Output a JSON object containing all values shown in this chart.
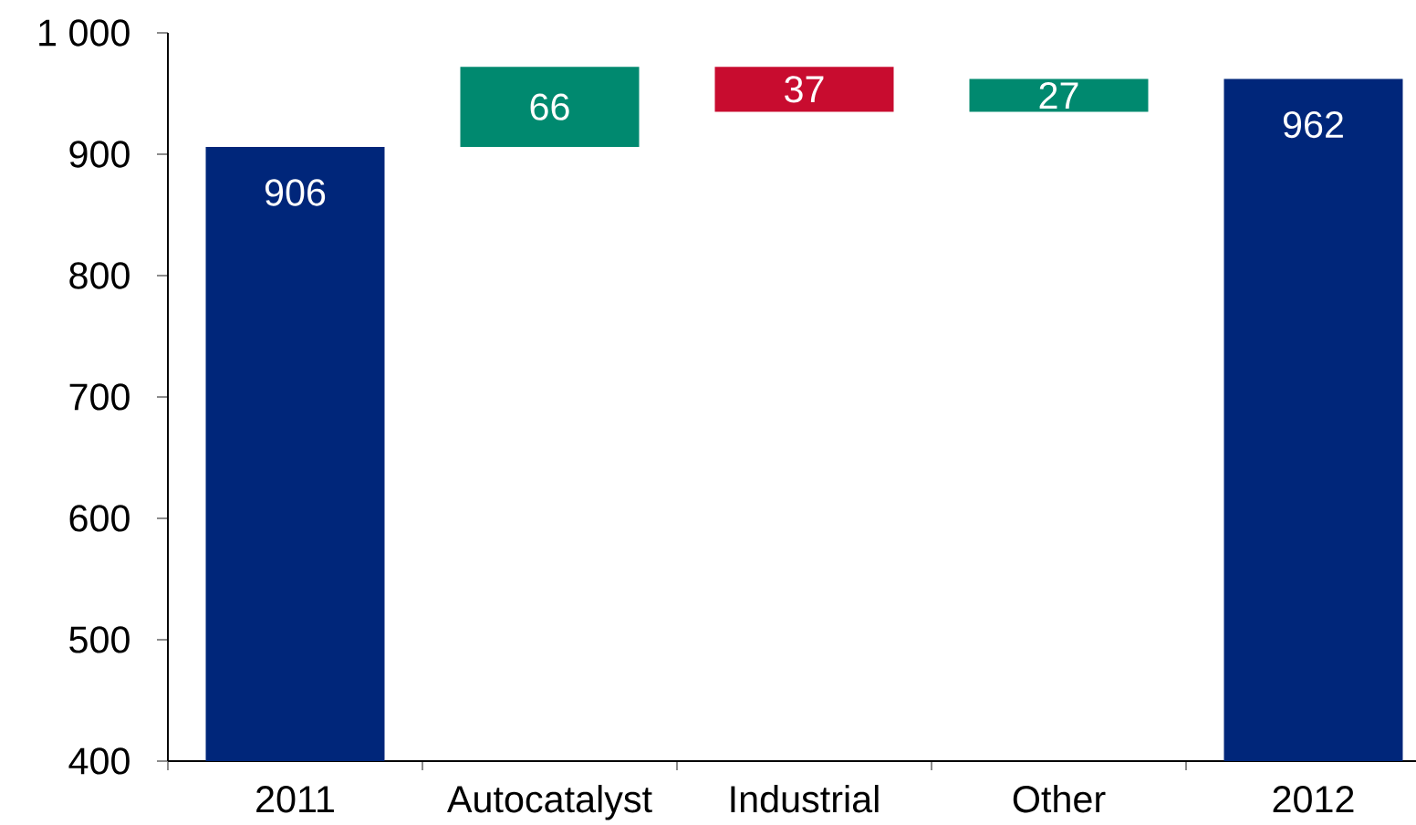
{
  "chart_data": {
    "type": "bar",
    "categories": [
      "2011",
      "Autocatalyst",
      "Industrial",
      "Other",
      "2012"
    ],
    "values": [
      906,
      66,
      -37,
      27,
      962
    ],
    "base": [
      null,
      906,
      972,
      935,
      null
    ],
    "colors": [
      "#00267a",
      "#00896f",
      "#c80c2f",
      "#00896f",
      "#00267a"
    ],
    "value_labels": [
      "906",
      "66",
      "37",
      "27",
      "962"
    ],
    "ylim": [
      400,
      1000
    ],
    "yticks": [
      400,
      500,
      600,
      700,
      800,
      900,
      {
        "value": 1000,
        "label": "1 000"
      }
    ]
  }
}
